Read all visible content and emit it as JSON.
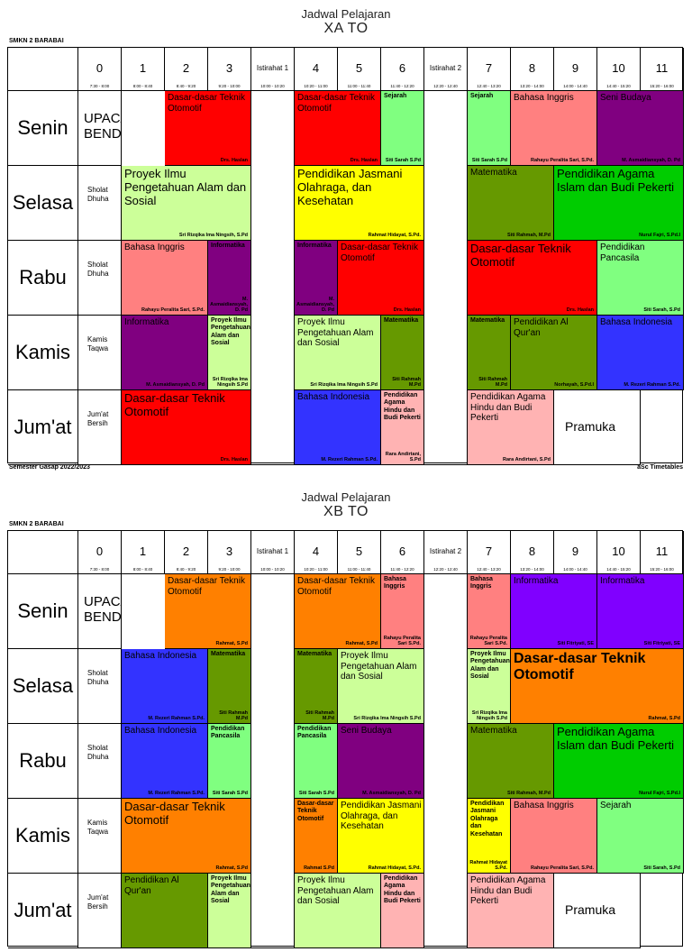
{
  "school": "SMKN 2 BARABAI",
  "header_cols": [
    {
      "n": "0",
      "t": "7:30 - 8:00"
    },
    {
      "n": "1",
      "t": "8:00 - 8:40"
    },
    {
      "n": "2",
      "t": "8:40 - 9:20"
    },
    {
      "n": "3",
      "t": "9:20 - 10:00"
    },
    {
      "n": "Istirahat 1",
      "t": "10:00 - 10:20"
    },
    {
      "n": "4",
      "t": "10:20 - 11:00"
    },
    {
      "n": "5",
      "t": "11:00 - 11:40"
    },
    {
      "n": "6",
      "t": "11:40 - 12:20"
    },
    {
      "n": "Istirahat 2",
      "t": "12:20 - 12:40"
    },
    {
      "n": "7",
      "t": "12:40 - 13:20"
    },
    {
      "n": "8",
      "t": "13:20 - 14:00"
    },
    {
      "n": "9",
      "t": "14:00 - 14:40"
    },
    {
      "n": "10",
      "t": "14:40 - 15:20"
    },
    {
      "n": "11",
      "t": "15:20 - 16:00"
    }
  ],
  "days": [
    "Senin",
    "Selasa",
    "Rabu",
    "Kamis",
    "Jum'at"
  ],
  "footer_left": "Semester Gasap 2022/2023",
  "footer_right": "aSc Timetables",
  "colors": {
    "red": "#ff0000",
    "lightgreen": "#80ff80",
    "salmon": "#ff8080",
    "purple": "#800080",
    "lime": "#ccff99",
    "yellow": "#ffff00",
    "olive": "#669900",
    "green": "#00cc00",
    "blue": "#3333ff",
    "pink": "#ffb3b3",
    "orange": "#ff8000",
    "violet": "#8000ff"
  },
  "timetables": [
    {
      "title": "Jadwal Pelajaran",
      "class": "XA TO",
      "cells": [
        {
          "r": 0,
          "c": 0,
          "s": 1,
          "h": 1,
          "col": "white",
          "sub": "UPACARA BENDERA",
          "sz": "ub"
        },
        {
          "r": 0,
          "c": 2,
          "s": 2,
          "h": 1,
          "col": "red",
          "sub": "Dasar-dasar Teknik Otomotif",
          "tch": "Drs. Haslan",
          "sz": "md"
        },
        {
          "r": 0,
          "c": 5,
          "s": 2,
          "h": 1,
          "col": "red",
          "sub": "Dasar-dasar Teknik Otomotif",
          "tch": "Drs. Haslan",
          "sz": "md"
        },
        {
          "r": 0,
          "c": 7,
          "s": 1,
          "h": 1,
          "col": "lightgreen",
          "sub": "Sejarah",
          "tch": "Siti Sarah S.Pd",
          "sz": "sm"
        },
        {
          "r": 0,
          "c": 9,
          "s": 1,
          "h": 1,
          "col": "lightgreen",
          "sub": "Sejarah",
          "tch": "Siti Sarah S.Pd",
          "sz": "sm"
        },
        {
          "r": 0,
          "c": 10,
          "s": 2,
          "h": 1,
          "col": "salmon",
          "sub": "Bahasa Inggris",
          "tch": "Rahayu Peralita Sari, S.Pd.",
          "sz": "md"
        },
        {
          "r": 0,
          "c": 12,
          "s": 2,
          "h": 1,
          "col": "purple",
          "sub": "Seni Budaya",
          "tch": "M. Asmaidiansyah, D. Pd",
          "sz": "md"
        },
        {
          "r": 1,
          "c": 0,
          "s": 1,
          "h": 1,
          "col": "white",
          "note": "Sholat Dhuha"
        },
        {
          "r": 1,
          "c": 1,
          "s": 3,
          "h": 1,
          "col": "lime",
          "sub": "Proyek Ilmu Pengetahuan Alam dan Sosial",
          "tch": "Sri Rizqika Ima Ningsih, S.Pd",
          "sz": "lg"
        },
        {
          "r": 1,
          "c": 5,
          "s": 3,
          "h": 1,
          "col": "yellow",
          "sub": "Pendidikan Jasmani Olahraga, dan Kesehatan",
          "tch": "Rahmat Hidayat, S.Pd.",
          "sz": "lg"
        },
        {
          "r": 1,
          "c": 9,
          "s": 2,
          "h": 1,
          "col": "olive",
          "sub": "Matematika",
          "tch": "Siti Rahmah, M.Pd",
          "sz": "md"
        },
        {
          "r": 1,
          "c": 11,
          "s": 3,
          "h": 1,
          "col": "green",
          "sub": "Pendidikan Agama Islam dan Budi Pekerti",
          "tch": "Nurul Fajri, S.Pd.I",
          "sz": "lg"
        },
        {
          "r": 2,
          "c": 0,
          "s": 1,
          "h": 1,
          "col": "white",
          "note": "Sholat Dhuha"
        },
        {
          "r": 2,
          "c": 1,
          "s": 2,
          "h": 1,
          "col": "salmon",
          "sub": "Bahasa Inggris",
          "tch": "Rahayu Peralita Sari, S.Pd.",
          "sz": "md"
        },
        {
          "r": 2,
          "c": 3,
          "s": 1,
          "h": 1,
          "col": "purple",
          "sub": "Informatika",
          "tch": "M. Asmaidiansyah, D. Pd",
          "sz": "sm"
        },
        {
          "r": 2,
          "c": 5,
          "s": 1,
          "h": 1,
          "col": "purple",
          "sub": "Informatika",
          "tch": "M. Asmaidiansyah, D. Pd",
          "sz": "sm"
        },
        {
          "r": 2,
          "c": 6,
          "s": 2,
          "h": 1,
          "col": "red",
          "sub": "Dasar-dasar Teknik Otomotif",
          "tch": "Drs. Haslan",
          "sz": "md"
        },
        {
          "r": 2,
          "c": 9,
          "s": 3,
          "h": 1,
          "col": "red",
          "sub": "Dasar-dasar Teknik Otomotif",
          "tch": "Drs. Haslan",
          "sz": "lg"
        },
        {
          "r": 2,
          "c": 12,
          "s": 2,
          "h": 1,
          "col": "lightgreen",
          "sub": "Pendidikan Pancasila",
          "tch": "Siti Sarah, S.Pd",
          "sz": "md"
        },
        {
          "r": 3,
          "c": 0,
          "s": 1,
          "h": 1,
          "col": "white",
          "note": "Kamis Taqwa"
        },
        {
          "r": 3,
          "c": 1,
          "s": 2,
          "h": 1,
          "col": "purple",
          "sub": "Informatika",
          "tch": "M. Asmaidiansyah, D. Pd",
          "sz": "md"
        },
        {
          "r": 3,
          "c": 3,
          "s": 1,
          "h": 1,
          "col": "lime",
          "sub": "Proyek Ilmu Pengetahuan Alam dan Sosial",
          "tch": "Sri Rizqika Ima Ningsih S.Pd",
          "sz": "sm"
        },
        {
          "r": 3,
          "c": 5,
          "s": 2,
          "h": 1,
          "col": "lime",
          "sub": "Proyek Ilmu Pengetahuan Alam dan Sosial",
          "tch": "Sri Rizqika Ima Ningsih S.Pd",
          "sz": "md"
        },
        {
          "r": 3,
          "c": 7,
          "s": 1,
          "h": 1,
          "col": "olive",
          "sub": "Matematika",
          "tch": "Siti Rahmah M.Pd",
          "sz": "sm"
        },
        {
          "r": 3,
          "c": 9,
          "s": 1,
          "h": 1,
          "col": "olive",
          "sub": "Matematika",
          "tch": "Siti Rahmah M.Pd",
          "sz": "sm"
        },
        {
          "r": 3,
          "c": 10,
          "s": 2,
          "h": 1,
          "col": "olive",
          "sub": "Pendidikan Al Qur'an",
          "tch": "Norhayah, S.Pd.I",
          "sz": "md"
        },
        {
          "r": 3,
          "c": 12,
          "s": 2,
          "h": 1,
          "col": "blue",
          "sub": "Bahasa Indonesia",
          "tch": "M. Rezeri Rahman S.Pd.",
          "sz": "md"
        },
        {
          "r": 4,
          "c": 0,
          "s": 1,
          "h": 1,
          "col": "white",
          "note": "Jum'at Bersih"
        },
        {
          "r": 4,
          "c": 1,
          "s": 3,
          "h": 1,
          "col": "red",
          "sub": "Dasar-dasar Teknik Otomotif",
          "tch": "Drs. Haslan",
          "sz": "lg"
        },
        {
          "r": 4,
          "c": 5,
          "s": 2,
          "h": 1,
          "col": "blue",
          "sub": "Bahasa Indonesia",
          "tch": "M. Rezeri Rahman S.Pd.",
          "sz": "md"
        },
        {
          "r": 4,
          "c": 7,
          "s": 1,
          "h": 1,
          "col": "pink",
          "sub": "Pendidikan Agama Hindu dan Budi Pekerti",
          "tch": "Rara Andirtani, S.Pd",
          "sz": "sm"
        },
        {
          "r": 4,
          "c": 9,
          "s": 2,
          "h": 1,
          "col": "pink",
          "sub": "Pendidikan Agama Hindu dan Budi Pekerti",
          "tch": "Rara Andirtani, S.Pd",
          "sz": "md"
        },
        {
          "r": 4,
          "c": 11,
          "s": 2,
          "h": 1,
          "col": "white",
          "sub": "Pramuka",
          "sz": "pr"
        }
      ]
    },
    {
      "title": "Jadwal Pelajaran",
      "class": "XB TO",
      "cells": [
        {
          "r": 0,
          "c": 0,
          "s": 1,
          "h": 1,
          "col": "white",
          "sub": "UPACARA BENDERA",
          "sz": "ub"
        },
        {
          "r": 0,
          "c": 2,
          "s": 2,
          "h": 1,
          "col": "orange",
          "sub": "Dasar-dasar Teknik Otomotif",
          "tch": "Rahmat, S.Pd",
          "sz": "md"
        },
        {
          "r": 0,
          "c": 5,
          "s": 2,
          "h": 1,
          "col": "orange",
          "sub": "Dasar-dasar Teknik Otomotif",
          "tch": "Rahmat, S.Pd",
          "sz": "md"
        },
        {
          "r": 0,
          "c": 7,
          "s": 1,
          "h": 1,
          "col": "salmon",
          "sub": "Bahasa Inggris",
          "tch": "Rahayu Peralita Sari S.Pd.",
          "sz": "sm"
        },
        {
          "r": 0,
          "c": 9,
          "s": 1,
          "h": 1,
          "col": "salmon",
          "sub": "Bahasa Inggris",
          "tch": "Rahayu Peralita Sari S.Pd.",
          "sz": "sm"
        },
        {
          "r": 0,
          "c": 10,
          "s": 2,
          "h": 1,
          "col": "violet",
          "sub": "Informatika",
          "tch": "Siti Fitriyati, SE",
          "sz": "md"
        },
        {
          "r": 0,
          "c": 12,
          "s": 2,
          "h": 1,
          "col": "violet",
          "sub": "Informatika",
          "tch": "Siti Fitriyati, SE",
          "sz": "md"
        },
        {
          "r": 1,
          "c": 0,
          "s": 1,
          "h": 1,
          "col": "white",
          "note": "Sholat Dhuha"
        },
        {
          "r": 1,
          "c": 1,
          "s": 2,
          "h": 1,
          "col": "blue",
          "sub": "Bahasa Indonesia",
          "tch": "M. Rezeri Rahman S.Pd.",
          "sz": "md"
        },
        {
          "r": 1,
          "c": 3,
          "s": 1,
          "h": 1,
          "col": "olive",
          "sub": "Matematika",
          "tch": "Siti Rahmah M.Pd",
          "sz": "sm"
        },
        {
          "r": 1,
          "c": 5,
          "s": 1,
          "h": 1,
          "col": "olive",
          "sub": "Matematika",
          "tch": "Siti Rahmah M.Pd",
          "sz": "sm"
        },
        {
          "r": 1,
          "c": 6,
          "s": 2,
          "h": 1,
          "col": "lime",
          "sub": "Proyek Ilmu Pengetahuan Alam dan Sosial",
          "tch": "Sri Rizqika Ima Ningsih S.Pd",
          "sz": "md"
        },
        {
          "r": 1,
          "c": 9,
          "s": 1,
          "h": 1,
          "col": "lime",
          "sub": "Proyek Ilmu Pengetahuan Alam dan Sosial",
          "tch": "Sri Rizqika Ima Ningsih S.Pd",
          "sz": "sm"
        },
        {
          "r": 1,
          "c": 10,
          "s": 4,
          "h": 1,
          "col": "orange",
          "sub": "Dasar-dasar Teknik Otomotif",
          "tch": "Rahmat, S.Pd",
          "sz": "xl"
        },
        {
          "r": 2,
          "c": 0,
          "s": 1,
          "h": 1,
          "col": "white",
          "note": "Sholat Dhuha"
        },
        {
          "r": 2,
          "c": 1,
          "s": 2,
          "h": 1,
          "col": "blue",
          "sub": "Bahasa Indonesia",
          "tch": "M. Rezeri Rahman S.Pd.",
          "sz": "md"
        },
        {
          "r": 2,
          "c": 3,
          "s": 1,
          "h": 1,
          "col": "lightgreen",
          "sub": "Pendidikan Pancasila",
          "tch": "Siti Sarah S.Pd",
          "sz": "sm"
        },
        {
          "r": 2,
          "c": 5,
          "s": 1,
          "h": 1,
          "col": "lightgreen",
          "sub": "Pendidikan Pancasila",
          "tch": "Siti Sarah S.Pd",
          "sz": "sm"
        },
        {
          "r": 2,
          "c": 6,
          "s": 2,
          "h": 1,
          "col": "purple",
          "sub": "Seni Budaya",
          "tch": "M. Asmaidiansyah, D. Pd",
          "sz": "md"
        },
        {
          "r": 2,
          "c": 9,
          "s": 2,
          "h": 1,
          "col": "olive",
          "sub": "Matematika",
          "tch": "Siti Rahmah, M.Pd",
          "sz": "md"
        },
        {
          "r": 2,
          "c": 11,
          "s": 3,
          "h": 1,
          "col": "green",
          "sub": "Pendidikan Agama Islam dan Budi Pekerti",
          "tch": "Nurul Fajri, S.Pd.I",
          "sz": "lg"
        },
        {
          "r": 3,
          "c": 0,
          "s": 1,
          "h": 1,
          "col": "white",
          "note": "Kamis Taqwa"
        },
        {
          "r": 3,
          "c": 1,
          "s": 3,
          "h": 1,
          "col": "orange",
          "sub": "Dasar-dasar Teknik Otomotif",
          "tch": "Rahmat, S.Pd",
          "sz": "lg"
        },
        {
          "r": 3,
          "c": 5,
          "s": 1,
          "h": 1,
          "col": "orange",
          "sub": "Dasar-dasar Teknik Otomotif",
          "tch": "Rahmat S.Pd",
          "sz": "sm"
        },
        {
          "r": 3,
          "c": 6,
          "s": 2,
          "h": 1,
          "col": "yellow",
          "sub": "Pendidikan Jasmani Olahraga, dan Kesehatan",
          "tch": "Rahmat Hidayat, S.Pd.",
          "sz": "md"
        },
        {
          "r": 3,
          "c": 9,
          "s": 1,
          "h": 1,
          "col": "yellow",
          "sub": "Pendidikan Jasmani Olahraga dan Kesehatan",
          "tch": "Rahmat Hidayat S.Pd.",
          "sz": "sm"
        },
        {
          "r": 3,
          "c": 10,
          "s": 2,
          "h": 1,
          "col": "salmon",
          "sub": "Bahasa Inggris",
          "tch": "Rahayu Peralita Sari, S.Pd.",
          "sz": "md"
        },
        {
          "r": 3,
          "c": 12,
          "s": 2,
          "h": 1,
          "col": "lightgreen",
          "sub": "Sejarah",
          "tch": "Siti Sarah, S.Pd",
          "sz": "md"
        },
        {
          "r": 4,
          "c": 0,
          "s": 1,
          "h": 1,
          "col": "white",
          "note": "Jum'at Bersih"
        },
        {
          "r": 4,
          "c": 1,
          "s": 2,
          "h": 1,
          "col": "olive",
          "sub": "Pendidikan Al Qur'an",
          "sz": "md"
        },
        {
          "r": 4,
          "c": 3,
          "s": 1,
          "h": 1,
          "col": "lime",
          "sub": "Proyek Ilmu Pengetahuan Alam dan Sosial",
          "sz": "sm"
        },
        {
          "r": 4,
          "c": 5,
          "s": 2,
          "h": 1,
          "col": "lime",
          "sub": "Proyek Ilmu Pengetahuan Alam dan Sosial",
          "sz": "md"
        },
        {
          "r": 4,
          "c": 7,
          "s": 1,
          "h": 1,
          "col": "pink",
          "sub": "Pendidikan Agama Hindu dan Budi Pekerti",
          "sz": "sm"
        },
        {
          "r": 4,
          "c": 9,
          "s": 2,
          "h": 1,
          "col": "pink",
          "sub": "Pendidikan Agama Hindu dan Budi Pekerti",
          "sz": "md"
        },
        {
          "r": 4,
          "c": 11,
          "s": 2,
          "h": 1,
          "col": "white",
          "sub": "Pramuka",
          "sz": "pr"
        }
      ]
    }
  ]
}
